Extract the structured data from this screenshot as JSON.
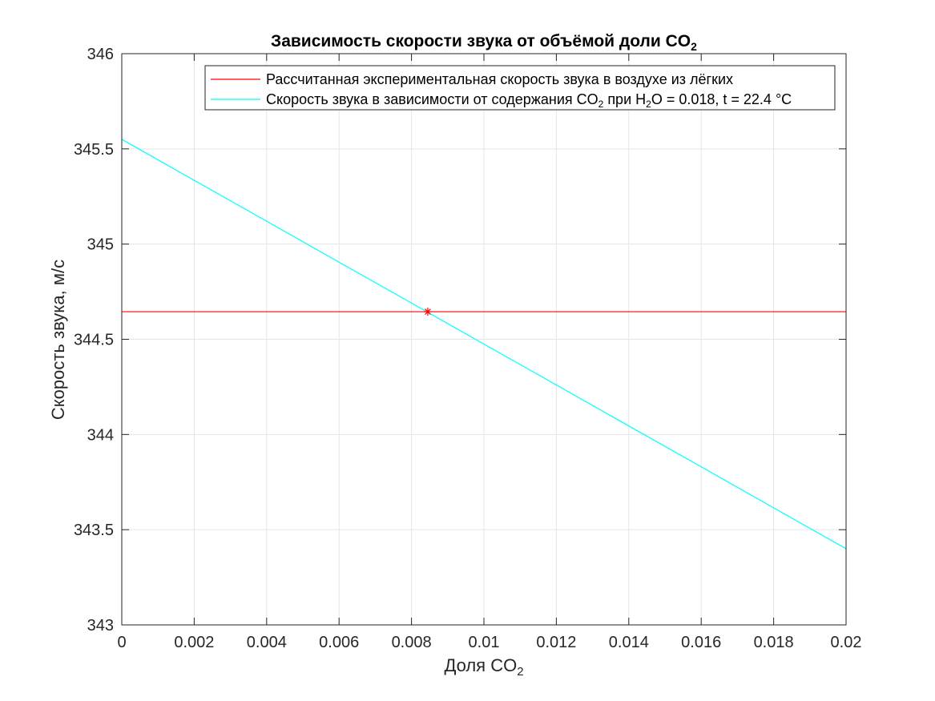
{
  "chart_data": {
    "type": "line",
    "title": "Зависимость скорости звука от объёмой доли CO",
    "title_sub": "2",
    "xlabel": "Доля CO",
    "xlabel_sub": "2",
    "ylabel": "Скорость звука, м/с",
    "xlim": [
      0,
      0.02
    ],
    "ylim": [
      343,
      346
    ],
    "xticks": [
      0,
      0.002,
      0.004,
      0.006,
      0.008,
      0.01,
      0.012,
      0.014,
      0.016,
      0.018,
      0.02
    ],
    "xtick_labels": [
      "0",
      "0.002",
      "0.004",
      "0.006",
      "0.008",
      "0.01",
      "0.012",
      "0.014",
      "0.016",
      "0.018",
      "0.02"
    ],
    "yticks": [
      343,
      343.5,
      344,
      344.5,
      345,
      345.5,
      346
    ],
    "ytick_labels": [
      "343",
      "343.5",
      "344",
      "344.5",
      "345",
      "345.5",
      "346"
    ],
    "grid": true,
    "legend_position": "top-right",
    "series": [
      {
        "name": "Рассчитанная экспериментальная скорость звука в воздухе из лёгких",
        "color": "#ff0000",
        "x": [
          0,
          0.02
        ],
        "y": [
          344.645,
          344.645
        ]
      },
      {
        "name_parts": [
          "Скорость звука в зависимости от содержания CO",
          "2",
          " при H",
          "2",
          "O = 0.018, t = 22.4 °C"
        ],
        "color": "#00ffff",
        "x": [
          0,
          0.02
        ],
        "y": [
          345.55,
          343.4
        ]
      }
    ],
    "marker": {
      "x": 0.00845,
      "y": 344.645,
      "symbol": "asterisk",
      "color": "#ff0000"
    }
  }
}
